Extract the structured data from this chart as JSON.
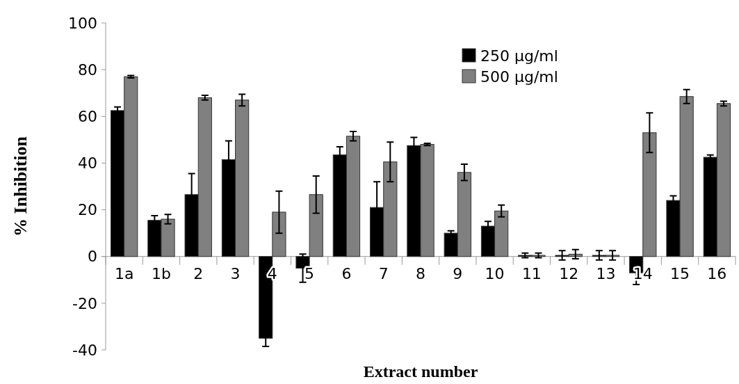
{
  "chart_data": {
    "type": "bar",
    "xlabel": "Extract number",
    "ylabel": "% Inhibition",
    "categories": [
      "1a",
      "1b",
      "2",
      "3",
      "4",
      "5",
      "6",
      "7",
      "8",
      "9",
      "10",
      "11",
      "12",
      "13",
      "14",
      "15",
      "16"
    ],
    "series": [
      {
        "name": "250 µg/ml",
        "color": "#000000",
        "values": [
          62.5,
          15.5,
          26.5,
          41.5,
          -35,
          -5,
          43.5,
          21,
          47.5,
          10,
          13,
          0.5,
          0.5,
          0.5,
          -7,
          24,
          42.5
        ],
        "errors": [
          1.5,
          2,
          9,
          8,
          3.5,
          6,
          3.5,
          11,
          3.5,
          1,
          2,
          1,
          2,
          2,
          5,
          2,
          1
        ]
      },
      {
        "name": "500 µg/ml",
        "color": "#808080",
        "values": [
          77,
          16,
          68,
          67,
          19,
          26.5,
          51.5,
          40.5,
          48,
          36,
          19.5,
          0.5,
          1,
          0.5,
          53,
          68.5,
          65.5
        ],
        "errors": [
          0.5,
          2,
          1,
          2.5,
          9,
          8,
          2,
          8.5,
          0.5,
          3.5,
          2.5,
          1,
          2,
          2,
          8.5,
          3,
          1
        ]
      }
    ],
    "ylim": [
      -40,
      100
    ],
    "yticks": [
      -40,
      -20,
      0,
      20,
      40,
      60,
      80,
      100
    ],
    "grid": false,
    "legend": "top right"
  }
}
